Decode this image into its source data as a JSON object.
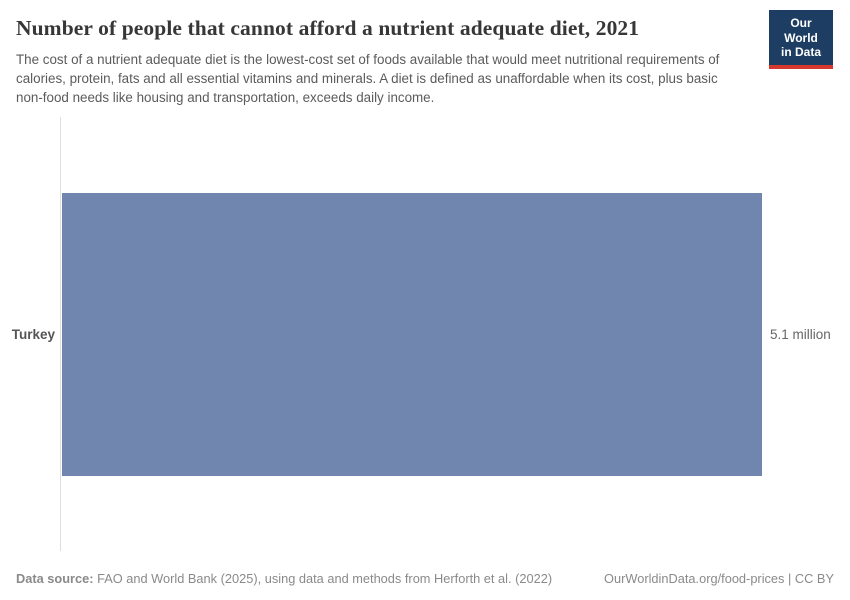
{
  "header": {
    "title": "Number of people that cannot afford a nutrient adequate diet, 2021",
    "subtitle": "The cost of a nutrient adequate diet is the lowest-cost set of foods available that would meet nutritional requirements of calories, protein, fats and all essential vitamins and minerals. A diet is defined as unaffordable when its cost, plus basic non-food needs like housing and transportation, exceeds daily income.",
    "logo_line1": "Our World",
    "logo_line2": "in Data"
  },
  "chart": {
    "entity_label": "Turkey",
    "value_label": "5.1 million",
    "bar_color": "#7086ae"
  },
  "chart_data": {
    "type": "bar",
    "orientation": "horizontal",
    "title": "Number of people that cannot afford a nutrient adequate diet, 2021",
    "categories": [
      "Turkey"
    ],
    "values": [
      5.1
    ],
    "unit": "million",
    "value_labels": [
      "5.1 million"
    ],
    "xlim": [
      0,
      5.1
    ],
    "grid": false,
    "legend": "none"
  },
  "footer": {
    "datasource_label": "Data source:",
    "datasource_text": "FAO and World Bank (2025), using data and methods from Herforth et al. (2022)",
    "link_text": "OurWorldinData.org/food-prices | CC BY"
  },
  "colors": {
    "bar": "#7086ae",
    "logo_background": "#1d3d63",
    "logo_stripe": "#d7382e",
    "axis_line": "#dedede"
  }
}
